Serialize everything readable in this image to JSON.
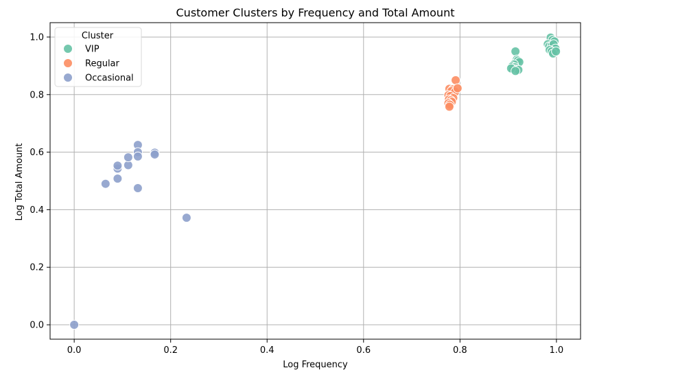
{
  "chart_data": {
    "type": "scatter",
    "title": "Customer Clusters by Frequency and Total Amount",
    "xlabel": "Log Frequency",
    "ylabel": "Log Total Amount",
    "xlim": [
      -0.05,
      1.05
    ],
    "ylim": [
      -0.05,
      1.05
    ],
    "xticks": [
      0.0,
      0.2,
      0.4,
      0.6,
      0.8,
      1.0
    ],
    "xtick_labels": [
      "0.0",
      "0.2",
      "0.4",
      "0.6",
      "0.8",
      "1.0"
    ],
    "yticks": [
      0.0,
      0.2,
      0.4,
      0.6,
      0.8,
      1.0
    ],
    "ytick_labels": [
      "0.0",
      "0.2",
      "0.4",
      "0.6",
      "0.8",
      "1.0"
    ],
    "grid": true,
    "legend": {
      "title": "Cluster",
      "position": "top-left"
    },
    "series": [
      {
        "name": "VIP",
        "color": "#66c2a5",
        "points": [
          [
            0.915,
            0.95
          ],
          [
            0.918,
            0.922
          ],
          [
            0.92,
            0.918
          ],
          [
            0.923,
            0.913
          ],
          [
            0.912,
            0.905
          ],
          [
            0.908,
            0.898
          ],
          [
            0.914,
            0.895
          ],
          [
            0.91,
            0.889
          ],
          [
            0.917,
            0.887
          ],
          [
            0.921,
            0.886
          ],
          [
            0.906,
            0.891
          ],
          [
            0.915,
            0.882
          ],
          [
            0.988,
            0.998
          ],
          [
            0.992,
            0.99
          ],
          [
            0.996,
            0.985
          ],
          [
            0.982,
            0.975
          ],
          [
            0.985,
            0.968
          ],
          [
            0.99,
            0.97
          ],
          [
            0.994,
            0.975
          ],
          [
            0.998,
            0.96
          ],
          [
            0.986,
            0.955
          ],
          [
            0.99,
            0.95
          ],
          [
            0.993,
            0.943
          ],
          [
            0.999,
            0.95
          ]
        ]
      },
      {
        "name": "Regular",
        "color": "#fc8d62",
        "points": [
          [
            0.791,
            0.85
          ],
          [
            0.778,
            0.82
          ],
          [
            0.785,
            0.818
          ],
          [
            0.782,
            0.812
          ],
          [
            0.79,
            0.81
          ],
          [
            0.795,
            0.822
          ],
          [
            0.776,
            0.798
          ],
          [
            0.78,
            0.795
          ],
          [
            0.786,
            0.788
          ],
          [
            0.777,
            0.783
          ],
          [
            0.781,
            0.78
          ],
          [
            0.783,
            0.775
          ],
          [
            0.776,
            0.77
          ],
          [
            0.779,
            0.765
          ],
          [
            0.778,
            0.758
          ]
        ]
      },
      {
        "name": "Occasional",
        "color": "#8da0cb",
        "points": [
          [
            0.0,
            0.0
          ],
          [
            0.065,
            0.49
          ],
          [
            0.09,
            0.508
          ],
          [
            0.09,
            0.543
          ],
          [
            0.09,
            0.553
          ],
          [
            0.112,
            0.555
          ],
          [
            0.112,
            0.582
          ],
          [
            0.132,
            0.625
          ],
          [
            0.132,
            0.6
          ],
          [
            0.132,
            0.585
          ],
          [
            0.132,
            0.475
          ],
          [
            0.167,
            0.598
          ],
          [
            0.167,
            0.592
          ],
          [
            0.233,
            0.372
          ]
        ]
      }
    ]
  }
}
